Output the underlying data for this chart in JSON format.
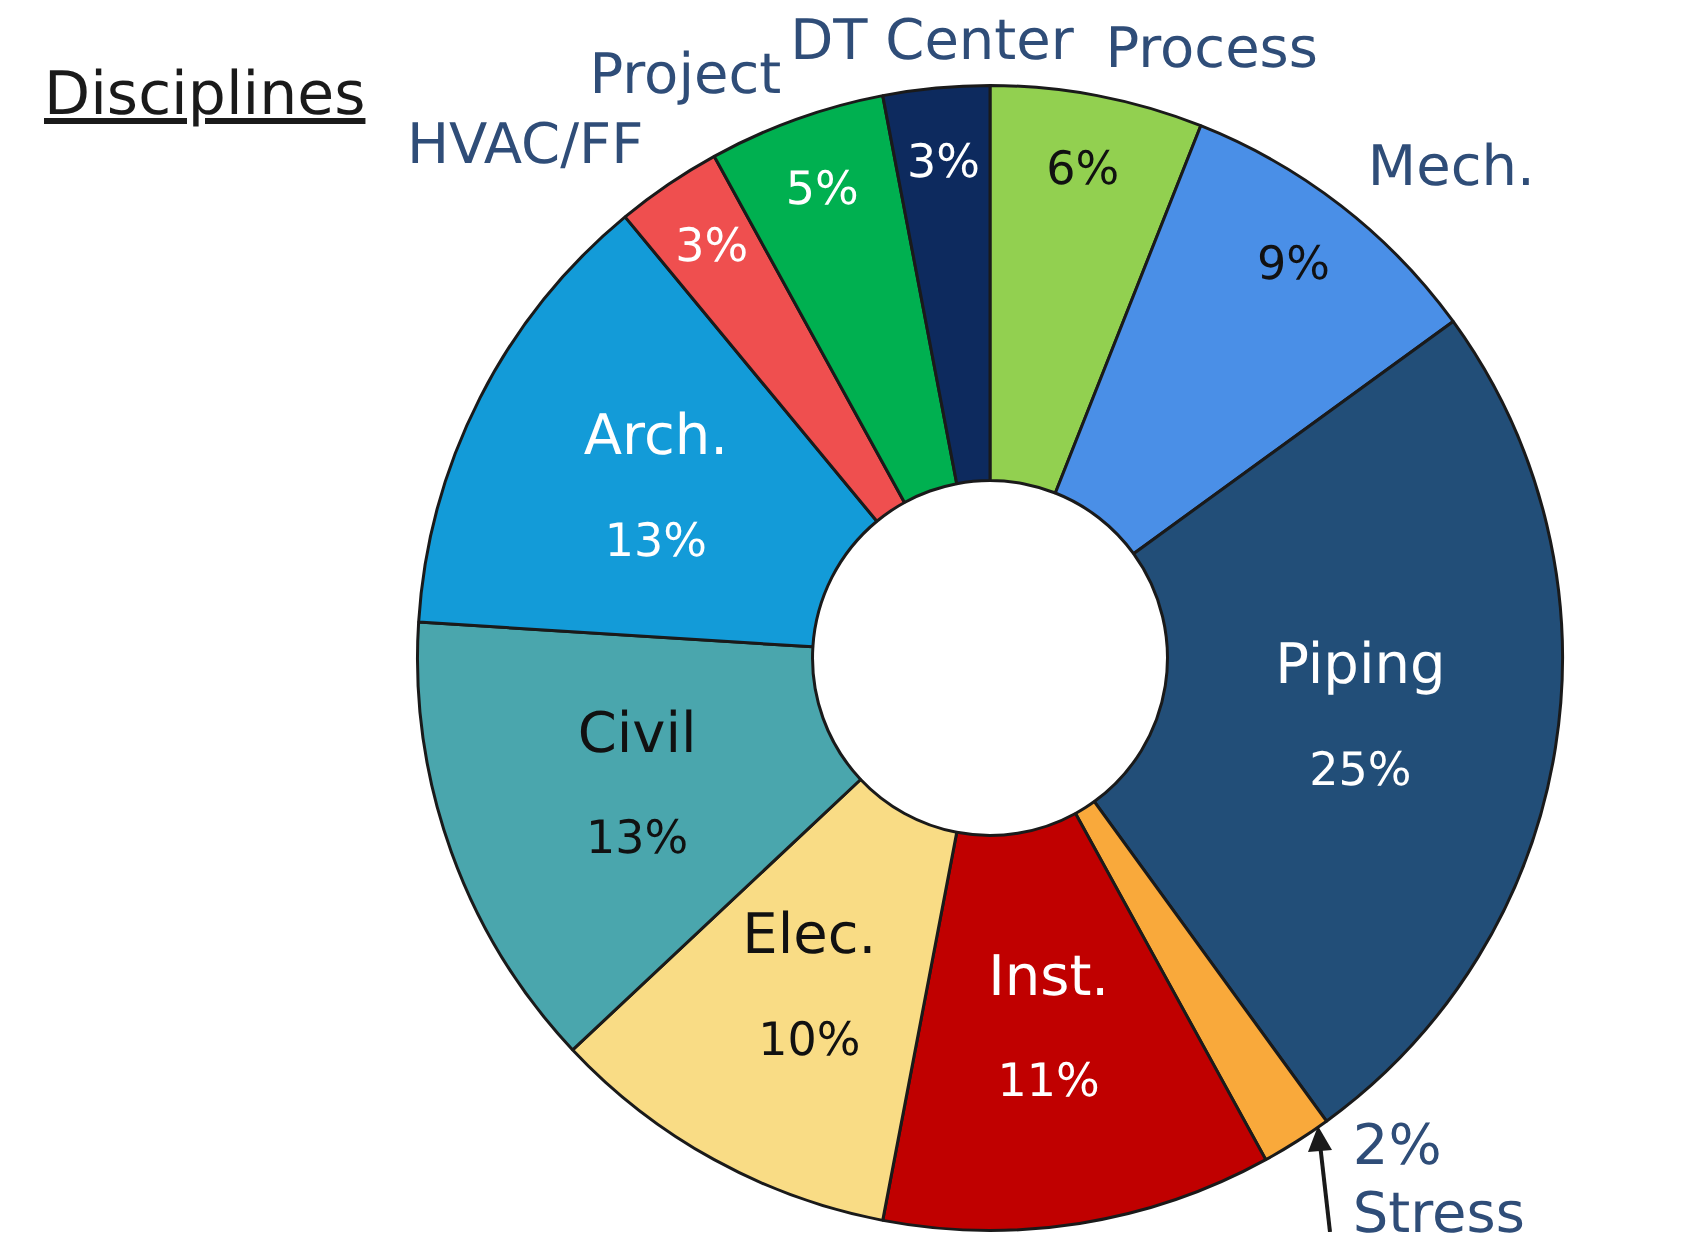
{
  "chart_data": {
    "type": "donut",
    "title": "Disciplines",
    "categories": [
      "Process",
      "Mech.",
      "Piping",
      "Stress",
      "Inst.",
      "Elec.",
      "Civil",
      "Arch.",
      "HVAC/FF",
      "Project",
      "DT Center"
    ],
    "values": [
      6,
      9,
      25,
      2,
      11,
      10,
      13,
      13,
      3,
      5,
      3
    ],
    "colors": [
      "#92d050",
      "#4a8fe7",
      "#224e78",
      "#f9a93b",
      "#c00000",
      "#f9dc85",
      "#4aa6ad",
      "#139bd8",
      "#ef4f4f",
      "#00b050",
      "#0d2a5e"
    ],
    "value_labels": [
      "6%",
      "9%",
      "25%",
      "2%",
      "11%",
      "10%",
      "13%",
      "13%",
      "3%",
      "5%",
      "3%"
    ]
  }
}
